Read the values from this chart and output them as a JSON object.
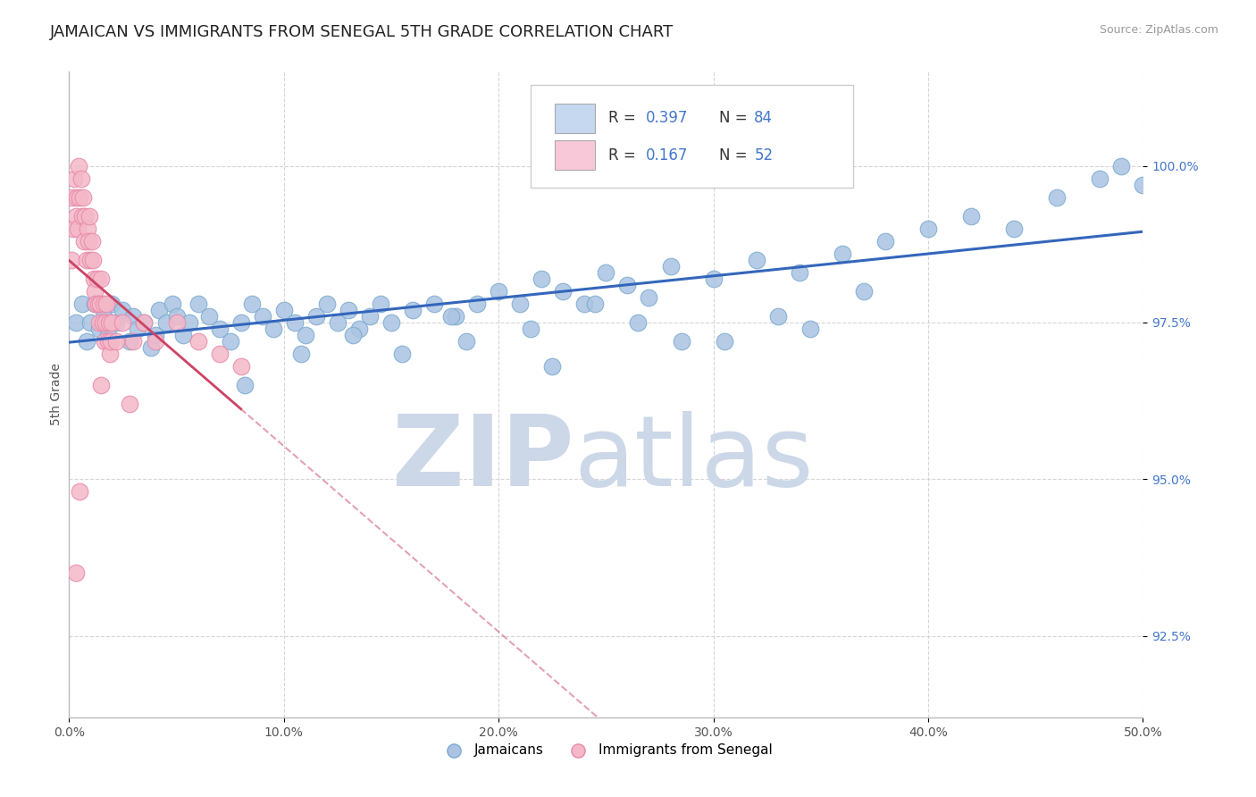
{
  "title": "JAMAICAN VS IMMIGRANTS FROM SENEGAL 5TH GRADE CORRELATION CHART",
  "source_text": "Source: ZipAtlas.com",
  "ylabel": "5th Grade",
  "xlim": [
    0.0,
    50.0
  ],
  "ylim": [
    91.2,
    101.5
  ],
  "yticks": [
    92.5,
    95.0,
    97.5,
    100.0
  ],
  "ytick_labels": [
    "92.5%",
    "95.0%",
    "97.5%",
    "100.0%"
  ],
  "xticks": [
    0.0,
    10.0,
    20.0,
    30.0,
    40.0,
    50.0
  ],
  "xtick_labels": [
    "0.0%",
    "10.0%",
    "20.0%",
    "30.0%",
    "40.0%",
    "50.0%"
  ],
  "blue_color": "#aac4e2",
  "blue_edge_color": "#7aaad0",
  "pink_color": "#f4b8c8",
  "pink_edge_color": "#e888a8",
  "blue_line_color": "#3366bb",
  "pink_line_color": "#cc4466",
  "legend_blue_fill": "#c5d8f0",
  "legend_pink_fill": "#f8c8d8",
  "watermark_color": "#ccd8e8",
  "title_fontsize": 13,
  "axis_label_fontsize": 10,
  "tick_fontsize": 10,
  "blue_x": [
    0.3,
    0.6,
    0.8,
    1.0,
    1.2,
    1.4,
    1.6,
    1.8,
    2.0,
    2.2,
    2.5,
    2.8,
    3.0,
    3.2,
    3.5,
    3.8,
    4.0,
    4.2,
    4.5,
    4.8,
    5.0,
    5.3,
    5.6,
    6.0,
    6.5,
    7.0,
    7.5,
    8.0,
    8.5,
    9.0,
    9.5,
    10.0,
    10.5,
    11.0,
    11.5,
    12.0,
    12.5,
    13.0,
    13.5,
    14.0,
    14.5,
    15.0,
    16.0,
    17.0,
    18.0,
    19.0,
    20.0,
    21.0,
    22.0,
    23.0,
    24.0,
    25.0,
    26.0,
    27.0,
    28.0,
    30.0,
    32.0,
    34.0,
    36.0,
    38.0,
    40.0,
    42.0,
    44.0,
    46.0,
    48.0,
    49.0,
    50.0,
    15.5,
    18.5,
    22.5,
    26.5,
    30.5,
    34.5,
    8.2,
    10.8,
    13.2,
    17.8,
    21.5,
    24.5,
    28.5,
    33.0,
    37.0
  ],
  "blue_y": [
    97.5,
    97.8,
    97.2,
    97.5,
    97.8,
    97.4,
    97.6,
    97.3,
    97.8,
    97.5,
    97.7,
    97.2,
    97.6,
    97.4,
    97.5,
    97.1,
    97.3,
    97.7,
    97.5,
    97.8,
    97.6,
    97.3,
    97.5,
    97.8,
    97.6,
    97.4,
    97.2,
    97.5,
    97.8,
    97.6,
    97.4,
    97.7,
    97.5,
    97.3,
    97.6,
    97.8,
    97.5,
    97.7,
    97.4,
    97.6,
    97.8,
    97.5,
    97.7,
    97.8,
    97.6,
    97.8,
    98.0,
    97.8,
    98.2,
    98.0,
    97.8,
    98.3,
    98.1,
    97.9,
    98.4,
    98.2,
    98.5,
    98.3,
    98.6,
    98.8,
    99.0,
    99.2,
    99.0,
    99.5,
    99.8,
    100.0,
    99.7,
    97.0,
    97.2,
    96.8,
    97.5,
    97.2,
    97.4,
    96.5,
    97.0,
    97.3,
    97.6,
    97.4,
    97.8,
    97.2,
    97.6,
    98.0
  ],
  "pink_x": [
    0.1,
    0.15,
    0.2,
    0.25,
    0.3,
    0.35,
    0.4,
    0.45,
    0.5,
    0.55,
    0.6,
    0.65,
    0.7,
    0.75,
    0.8,
    0.85,
    0.9,
    0.95,
    1.0,
    1.05,
    1.1,
    1.15,
    1.2,
    1.25,
    1.3,
    1.35,
    1.4,
    1.45,
    1.5,
    1.55,
    1.6,
    1.65,
    1.7,
    1.75,
    1.8,
    1.85,
    1.9,
    1.95,
    2.0,
    2.2,
    2.5,
    3.0,
    3.5,
    4.0,
    5.0,
    6.0,
    7.0,
    8.0,
    1.5,
    2.8,
    0.5,
    0.3
  ],
  "pink_y": [
    98.5,
    99.5,
    99.0,
    99.8,
    99.2,
    99.5,
    99.0,
    100.0,
    99.5,
    99.8,
    99.2,
    99.5,
    98.8,
    99.2,
    98.5,
    99.0,
    98.8,
    99.2,
    98.5,
    98.8,
    98.5,
    98.2,
    98.0,
    97.8,
    98.2,
    97.8,
    97.5,
    97.8,
    98.2,
    97.5,
    97.8,
    97.2,
    97.5,
    97.8,
    97.2,
    97.5,
    97.0,
    97.2,
    97.5,
    97.2,
    97.5,
    97.2,
    97.5,
    97.2,
    97.5,
    97.2,
    97.0,
    96.8,
    96.5,
    96.2,
    94.8,
    93.5
  ]
}
